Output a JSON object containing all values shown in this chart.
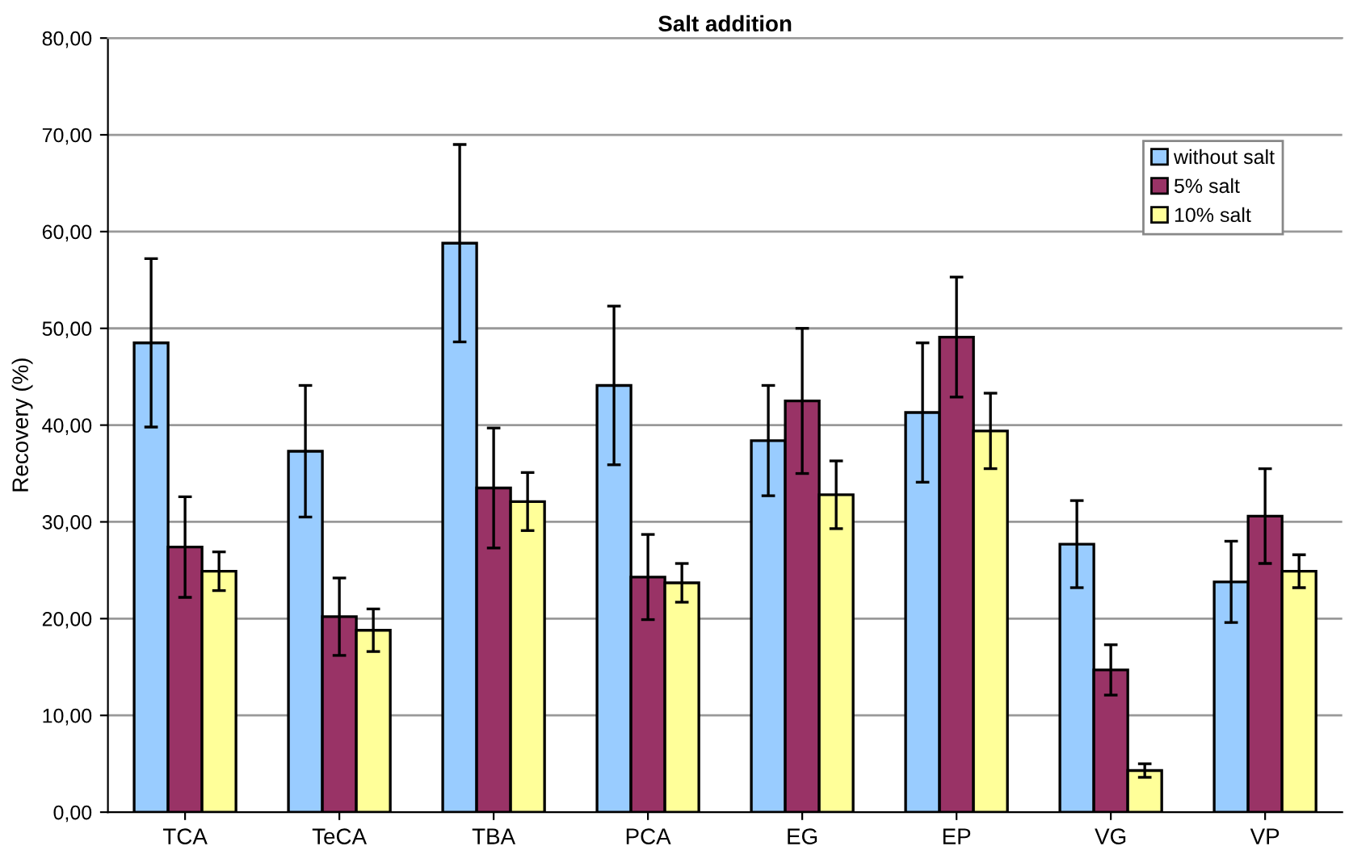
{
  "chart_data": {
    "type": "bar",
    "title": "Salt addition",
    "ylabel": "Recovery (%)",
    "categories": [
      "TCA",
      "TeCA",
      "TBA",
      "PCA",
      "EG",
      "EP",
      "VG",
      "VP"
    ],
    "series": [
      {
        "name": "without salt",
        "color": "#99ccff",
        "values": [
          48.5,
          37.3,
          58.8,
          44.1,
          38.4,
          41.3,
          27.7,
          23.8
        ],
        "errors": [
          8.7,
          6.8,
          10.2,
          8.2,
          5.7,
          7.2,
          4.5,
          4.2
        ]
      },
      {
        "name": "5% salt",
        "color": "#993366",
        "values": [
          27.4,
          20.2,
          33.5,
          24.3,
          42.5,
          49.1,
          14.7,
          30.6
        ],
        "errors": [
          5.2,
          4.0,
          6.2,
          4.4,
          7.5,
          6.2,
          2.6,
          4.9
        ]
      },
      {
        "name": "10% salt",
        "color": "#ffff99",
        "values": [
          24.9,
          18.8,
          32.1,
          23.7,
          32.8,
          39.4,
          4.3,
          24.9
        ],
        "errors": [
          2.0,
          2.2,
          3.0,
          2.0,
          3.5,
          3.9,
          0.7,
          1.7
        ]
      }
    ],
    "ylim": [
      0,
      80
    ],
    "yticks": [
      {
        "value": 0,
        "label": "0,00"
      },
      {
        "value": 10,
        "label": "10,00"
      },
      {
        "value": 20,
        "label": "20,00"
      },
      {
        "value": 30,
        "label": "30,00"
      },
      {
        "value": 40,
        "label": "40,00"
      },
      {
        "value": 50,
        "label": "50,00"
      },
      {
        "value": 60,
        "label": "60,00"
      },
      {
        "value": 70,
        "label": "70,00"
      },
      {
        "value": 80,
        "label": "80,00"
      }
    ],
    "grid": "y",
    "legend": "top right"
  }
}
